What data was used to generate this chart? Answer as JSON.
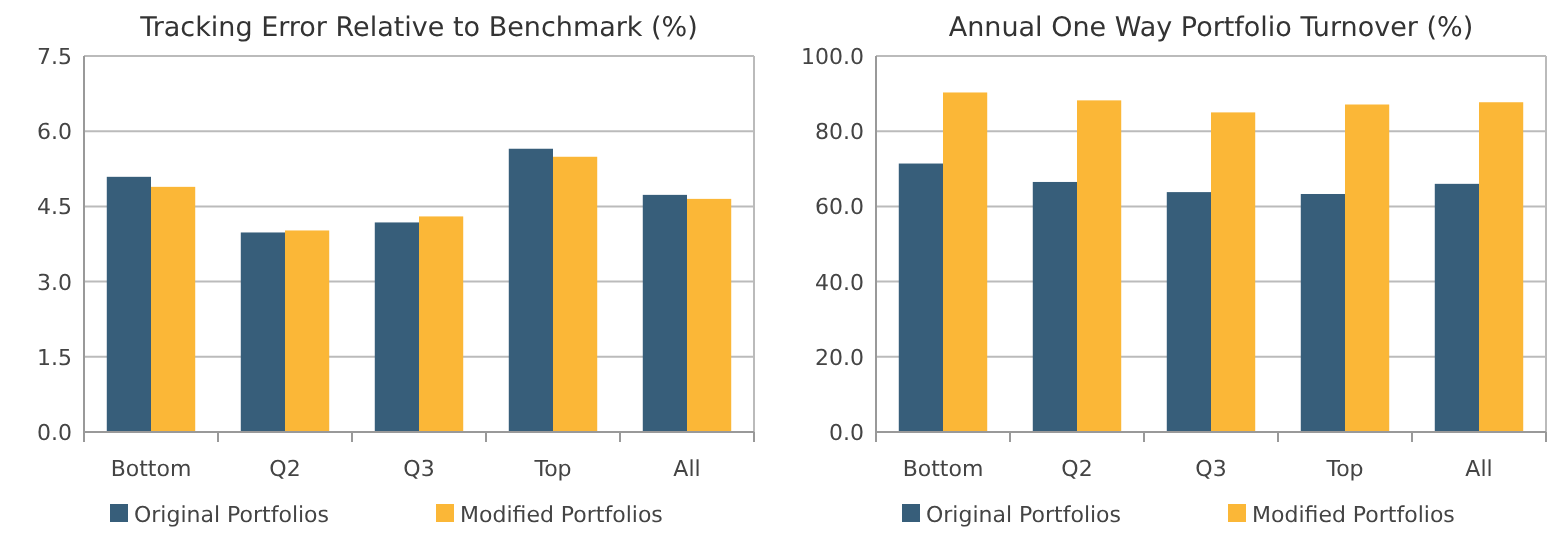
{
  "chart_data": [
    {
      "type": "bar",
      "title": "Tracking Error Relative to Benchmark (%)",
      "categories": [
        "Bottom",
        "Q2",
        "Q3",
        "Top",
        "All"
      ],
      "series": [
        {
          "name": "Original Portfolios",
          "color": "#375e7a",
          "values": [
            5.09,
            3.98,
            4.18,
            5.65,
            4.73
          ]
        },
        {
          "name": "Modified Portfolios",
          "color": "#fbb737",
          "values": [
            4.89,
            4.02,
            4.3,
            5.49,
            4.65
          ]
        }
      ],
      "ylim": [
        0,
        7.5
      ],
      "yticks": [
        {
          "value": 0,
          "label": "0.0"
        },
        {
          "value": 1.5,
          "label": "1.5"
        },
        {
          "value": 3,
          "label": "3.0"
        },
        {
          "value": 4.5,
          "label": "4.5"
        },
        {
          "value": 6,
          "label": "6.0"
        },
        {
          "value": 7.5,
          "label": "7.5"
        }
      ],
      "grid": "y",
      "legend": "bottom"
    },
    {
      "type": "bar",
      "title": "Annual One Way Portfolio Turnover (%)",
      "categories": [
        "Bottom",
        "Q2",
        "Q3",
        "Top",
        "All"
      ],
      "series": [
        {
          "name": "Original Portfolios",
          "color": "#375e7a",
          "values": [
            71.4,
            66.5,
            63.8,
            63.3,
            66.0
          ]
        },
        {
          "name": "Modified Portfolios",
          "color": "#fbb737",
          "values": [
            90.3,
            88.2,
            85.0,
            87.1,
            87.7
          ]
        }
      ],
      "ylim": [
        0,
        100
      ],
      "yticks": [
        {
          "value": 0,
          "label": "0.0"
        },
        {
          "value": 20,
          "label": "20.0"
        },
        {
          "value": 40,
          "label": "40.0"
        },
        {
          "value": 60,
          "label": "60.0"
        },
        {
          "value": 80,
          "label": "80.0"
        },
        {
          "value": 100,
          "label": "100.0"
        }
      ],
      "grid": "y",
      "legend": "bottom"
    }
  ]
}
